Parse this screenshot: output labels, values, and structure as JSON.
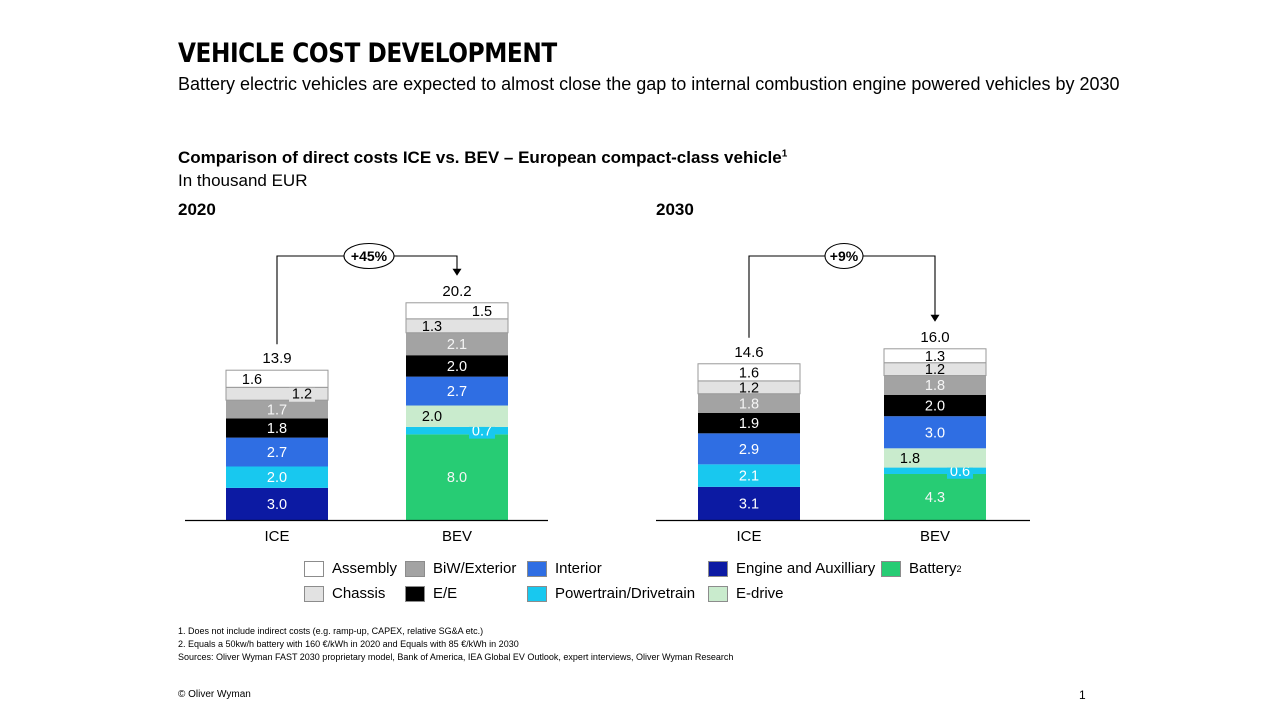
{
  "header": {
    "title": "VEHICLE COST DEVELOPMENT",
    "subtitle": "Battery electric vehicles are expected to almost close the gap to internal combustion engine powered vehicles by 2030"
  },
  "chart_heading": {
    "title": "Comparison of direct costs ICE vs. BEV – European compact-class vehicle",
    "title_sup": "1",
    "unit": "In thousand EUR"
  },
  "chart_data": [
    {
      "type": "bar",
      "stacked": true,
      "title": "2020",
      "unit": "thousand EUR",
      "categories": [
        "ICE",
        "BEV"
      ],
      "totals": [
        13.9,
        20.2
      ],
      "difference_label": "+45%",
      "series": [
        {
          "name": "Engine and Auxilliary",
          "values": [
            3.0,
            null
          ]
        },
        {
          "name": "Battery",
          "values": [
            null,
            8.0
          ]
        },
        {
          "name": "Powertrain/Drivetrain",
          "values": [
            2.0,
            0.7
          ]
        },
        {
          "name": "E-drive",
          "values": [
            null,
            2.0
          ]
        },
        {
          "name": "Interior",
          "values": [
            2.7,
            2.7
          ]
        },
        {
          "name": "E/E",
          "values": [
            1.8,
            2.0
          ]
        },
        {
          "name": "BiW/Exterior",
          "values": [
            1.7,
            2.1
          ]
        },
        {
          "name": "Chassis",
          "values": [
            1.2,
            1.3
          ]
        },
        {
          "name": "Assembly",
          "values": [
            1.6,
            1.5
          ]
        }
      ]
    },
    {
      "type": "bar",
      "stacked": true,
      "title": "2030",
      "unit": "thousand EUR",
      "categories": [
        "ICE",
        "BEV"
      ],
      "totals": [
        14.6,
        16.0
      ],
      "difference_label": "+9%",
      "series": [
        {
          "name": "Engine and Auxilliary",
          "values": [
            3.1,
            null
          ]
        },
        {
          "name": "Battery",
          "values": [
            null,
            4.3
          ]
        },
        {
          "name": "Powertrain/Drivetrain",
          "values": [
            2.1,
            0.6
          ]
        },
        {
          "name": "E-drive",
          "values": [
            null,
            1.8
          ]
        },
        {
          "name": "Interior",
          "values": [
            2.9,
            3.0
          ]
        },
        {
          "name": "E/E",
          "values": [
            1.9,
            2.0
          ]
        },
        {
          "name": "BiW/Exterior",
          "values": [
            1.8,
            1.8
          ]
        },
        {
          "name": "Chassis",
          "values": [
            1.2,
            1.2
          ]
        },
        {
          "name": "Assembly",
          "values": [
            1.6,
            1.3
          ]
        }
      ]
    }
  ],
  "colors": {
    "Assembly": "#ffffff",
    "Chassis": "#e2e2e2",
    "BiW/Exterior": "#a3a3a3",
    "E/E": "#000000",
    "Interior": "#2f6ee3",
    "Powertrain/Drivetrain": "#18c8ef",
    "Engine and Auxilliary": "#0c1aa3",
    "E-drive": "#c9ebcd",
    "Battery": "#27cc74"
  },
  "legend": [
    {
      "key": "Assembly",
      "label": "Assembly",
      "sup": ""
    },
    {
      "key": "Chassis",
      "label": "Chassis",
      "sup": ""
    },
    {
      "key": "BiW/Exterior",
      "label": "BiW/Exterior",
      "sup": ""
    },
    {
      "key": "E/E",
      "label": "E/E",
      "sup": ""
    },
    {
      "key": "Interior",
      "label": "Interior",
      "sup": ""
    },
    {
      "key": "Powertrain/Drivetrain",
      "label": "Powertrain/Drivetrain",
      "sup": ""
    },
    {
      "key": "Engine and Auxilliary",
      "label": "Engine and Auxilliary",
      "sup": ""
    },
    {
      "key": "E-drive",
      "label": "E-drive",
      "sup": ""
    },
    {
      "key": "Battery",
      "label": "Battery",
      "sup": "2"
    }
  ],
  "footnotes": {
    "note1": "1. Does not include indirect costs (e.g. ramp-up, CAPEX, relative SG&A etc.)",
    "note2": "2. Equals a 50kw/h battery with 160 €/kWh in 2020 and Equals with 85 €/kWh in 2030",
    "sources": "Sources: Oliver Wyman FAST 2030 proprietary model, Bank of America, IEA Global EV Outlook, expert interviews, Oliver Wyman Research"
  },
  "footer": {
    "copyright": "© Oliver Wyman",
    "page_number": "1"
  }
}
